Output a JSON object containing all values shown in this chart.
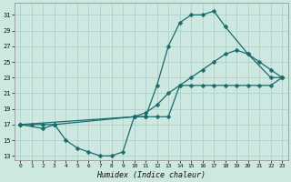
{
  "bg_color": "#cce8e0",
  "grid_color": "#aacccc",
  "line_color": "#1a6b6b",
  "markersize": 2.5,
  "linewidth": 0.9,
  "xlabel": "Humidex (Indice chaleur)",
  "xlim": [
    -0.5,
    23.5
  ],
  "ylim": [
    12.5,
    32.5
  ],
  "yticks": [
    13,
    15,
    17,
    19,
    21,
    23,
    25,
    27,
    29,
    31
  ],
  "xticks": [
    0,
    1,
    2,
    3,
    4,
    5,
    6,
    7,
    8,
    9,
    10,
    11,
    12,
    13,
    14,
    15,
    16,
    17,
    18,
    19,
    20,
    21,
    22,
    23
  ],
  "curve1_x": [
    0,
    1,
    2,
    3,
    10,
    11,
    12,
    13,
    14,
    15,
    16,
    17,
    18,
    20,
    22,
    23
  ],
  "curve1_y": [
    17,
    17,
    17,
    17,
    18,
    18,
    22,
    27,
    30,
    31,
    31,
    31.5,
    29.5,
    26,
    23,
    23
  ],
  "curve2_x": [
    0,
    2,
    3,
    4,
    5,
    6,
    7,
    8,
    9,
    10,
    11,
    12,
    13,
    14,
    15,
    16,
    17,
    18,
    19,
    20,
    21,
    22,
    23
  ],
  "curve2_y": [
    17,
    16.5,
    17,
    15,
    14,
    13.5,
    13,
    13,
    13.5,
    18,
    18,
    18,
    18,
    22,
    22,
    22,
    22,
    22,
    22,
    22,
    22,
    22,
    23
  ],
  "curve3_x": [
    0,
    10,
    11,
    12,
    13,
    14,
    15,
    16,
    17,
    18,
    19,
    20,
    21,
    22,
    23
  ],
  "curve3_y": [
    17,
    18,
    18.5,
    19.5,
    21,
    22,
    23,
    24,
    25,
    26,
    26.5,
    26,
    25,
    24,
    23
  ]
}
